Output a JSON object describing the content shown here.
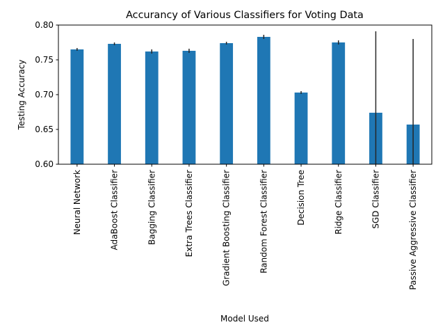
{
  "chart_data": {
    "type": "bar",
    "title": "Accurancy of Various Classifiers for Voting Data",
    "xlabel": "Model Used",
    "ylabel": "Testing Accuracy",
    "ylim": [
      0.6,
      0.8
    ],
    "yticks": [
      "0.60",
      "0.65",
      "0.70",
      "0.75",
      "0.80"
    ],
    "grid": false,
    "categories": [
      "Neural Network",
      "AdaBoost Classifier",
      "Bagging Classifier",
      "Extra Trees Classifier",
      "Gradient Boosting Classifier",
      "Random Forest Classifier",
      "Decision Tree",
      "Ridge Classifier",
      "SGD Classifier",
      "Passive Aggressive Classifier"
    ],
    "values": [
      0.765,
      0.773,
      0.762,
      0.763,
      0.774,
      0.783,
      0.703,
      0.775,
      0.674,
      0.657
    ],
    "error": [
      0.002,
      0.002,
      0.003,
      0.003,
      0.002,
      0.003,
      0.002,
      0.003,
      0.117,
      0.123
    ],
    "bar_color": "#1f77b4",
    "error_color": "#262626"
  }
}
